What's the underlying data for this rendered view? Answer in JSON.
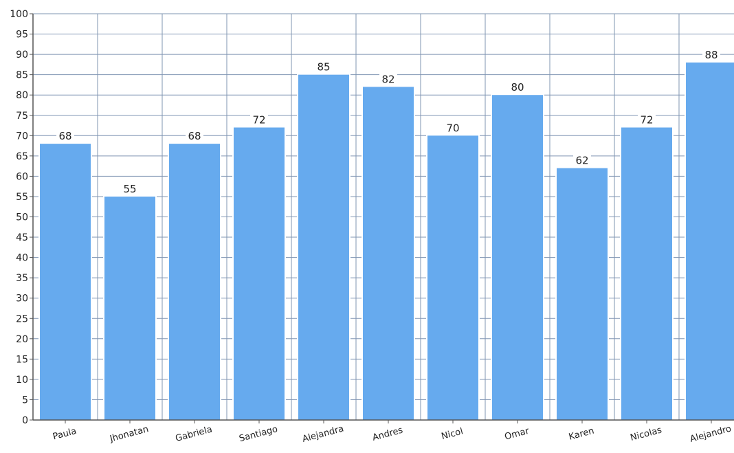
{
  "chart_data": {
    "type": "bar",
    "categories": [
      "Paula",
      "Jhonatan",
      "Gabriela",
      "Santiago",
      "Alejandra",
      "Andres",
      "Nicol",
      "Omar",
      "Karen",
      "Nicolas",
      "Alejandro"
    ],
    "values": [
      68,
      55,
      68,
      72,
      85,
      82,
      70,
      80,
      62,
      72,
      88
    ],
    "title": "",
    "xlabel": "",
    "ylabel": "",
    "ylim": [
      0,
      100
    ],
    "ytick_step": 5,
    "grid": true,
    "data_labels": true,
    "legend": "none"
  },
  "colors": {
    "bar": "#66aaee",
    "bar_edge": "#ffffff",
    "grid": "#7f94b2",
    "axis": "#555555",
    "background": "#ffffff"
  }
}
